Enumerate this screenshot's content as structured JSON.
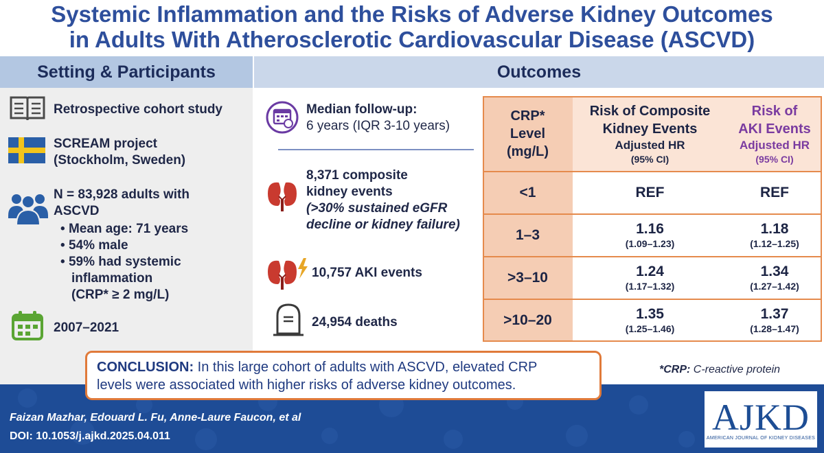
{
  "title": {
    "line1": "Systemic Inflammation and the Risks of Adverse Kidney Outcomes",
    "line2": "in Adults With Atherosclerotic Cardiovascular Disease (ASCVD)"
  },
  "sections": {
    "left_header": "Setting & Participants",
    "right_header": "Outcomes"
  },
  "setting": {
    "study_type": "Retrospective cohort study",
    "project_line1": "SCREAM project",
    "project_line2": "(Stockholm, Sweden)",
    "n_line1": "N = 83,928 adults with",
    "n_line2": "ASCVD",
    "bullets": [
      "Mean age: 71 years",
      "54% male",
      "59% had systemic"
    ],
    "bullet3_line2": "inflammation",
    "bullet3_line3": "(CRP* ≥ 2 mg/L)",
    "years": "2007–2021"
  },
  "outcomes": {
    "followup_label": "Median follow-up:",
    "followup_value": "6 years (IQR 3-10 years)",
    "composite_line1": "8,371 composite",
    "composite_line2": "kidney events",
    "composite_line3": "(>30% sustained eGFR",
    "composite_line4": "decline or kidney failure)",
    "aki": "10,757 AKI events",
    "deaths": "24,954 deaths"
  },
  "table": {
    "col1_line1": "CRP*",
    "col1_line2": "Level",
    "col1_line3": "(mg/L)",
    "col2_line1": "Risk of Composite",
    "col2_line2": "Kidney Events",
    "col2_line3": "Adjusted HR",
    "col2_line4": "(95% CI)",
    "col3_line1": "Risk of",
    "col3_line2": "AKI Events",
    "col3_line3": "Adjusted HR",
    "col3_line4": "(95% CI)",
    "rows": [
      {
        "level": "<1",
        "comp": "REF",
        "comp_ci": "",
        "aki": "REF",
        "aki_ci": ""
      },
      {
        "level": "1–3",
        "comp": "1.16",
        "comp_ci": "(1.09–1.23)",
        "aki": "1.18",
        "aki_ci": "(1.12–1.25)"
      },
      {
        "level": ">3–10",
        "comp": "1.24",
        "comp_ci": "(1.17–1.32)",
        "aki": "1.34",
        "aki_ci": "(1.27–1.42)"
      },
      {
        "level": ">10–20",
        "comp": "1.35",
        "comp_ci": "(1.25–1.46)",
        "aki": "1.37",
        "aki_ci": "(1.28–1.47)"
      }
    ]
  },
  "conclusion": {
    "label": "CONCLUSION:",
    "text_line1": " In this large cohort of adults with ASCVD, elevated CRP",
    "text_line2": "levels were associated with higher risks of adverse kidney outcomes."
  },
  "footnote": {
    "abbr": "*CRP:",
    "meaning": " C-reactive protein"
  },
  "footer": {
    "authors": "Faizan Mazhar, Edouard L. Fu, Anne-Laure Faucon, et al",
    "doi": "DOI: 10.1053/j.ajkd.2025.04.011",
    "logo_main": "AJKD",
    "logo_sub": "AMERICAN JOURNAL OF KIDNEY DISEASES"
  },
  "colors": {
    "title": "#2e4f9c",
    "purple": "#7a3ba0",
    "orange_border": "#e58a4c",
    "footer_blue": "#1e4c96"
  },
  "icons": [
    "book-icon",
    "sweden-flag-icon",
    "people-icon",
    "calendar-icon",
    "followup-calendar-icon",
    "kidney-icon",
    "kidney-lightning-icon",
    "tombstone-icon"
  ]
}
